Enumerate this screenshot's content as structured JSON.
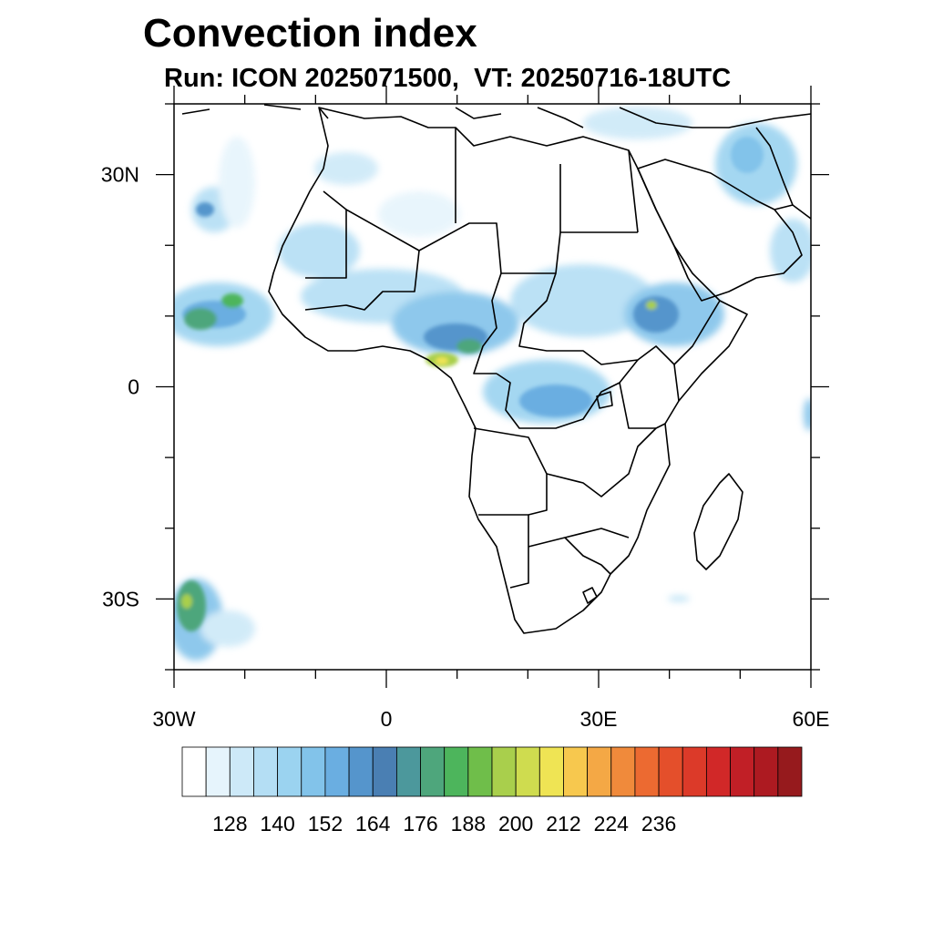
{
  "title": "Convection index",
  "subtitle": "Run: ICON 2025071500,  VT: 20250716-18UTC",
  "axes": {
    "lat_ticks": [
      {
        "lat": 30,
        "label": "30N"
      },
      {
        "lat": 0,
        "label": "0"
      },
      {
        "lat": -30,
        "label": "30S"
      }
    ],
    "lon_ticks": [
      {
        "lon": -30,
        "label": "30W"
      },
      {
        "lon": 0,
        "label": "0"
      },
      {
        "lon": 30,
        "label": "30E"
      },
      {
        "lon": 60,
        "label": "60E"
      }
    ],
    "lon_range": [
      -30,
      60
    ],
    "lat_range": [
      -40,
      40
    ]
  },
  "colorbar": {
    "colors": [
      "#ffffff",
      "#e6f4fc",
      "#cde9f8",
      "#b4def4",
      "#9bd3f0",
      "#82c3ea",
      "#6aaee1",
      "#5595cc",
      "#4a7fb3",
      "#4c989c",
      "#4ea67c",
      "#4db55c",
      "#6fbe4a",
      "#a9cf4c",
      "#cfdc4f",
      "#efe454",
      "#f7c84e",
      "#f4a845",
      "#f08a3b",
      "#ec6a31",
      "#e44f2b",
      "#dc3a29",
      "#d12828",
      "#c11f26",
      "#ad1a21",
      "#961a1d"
    ],
    "labels": [
      "128",
      "140",
      "152",
      "164",
      "176",
      "188",
      "200",
      "212",
      "224",
      "236"
    ]
  }
}
